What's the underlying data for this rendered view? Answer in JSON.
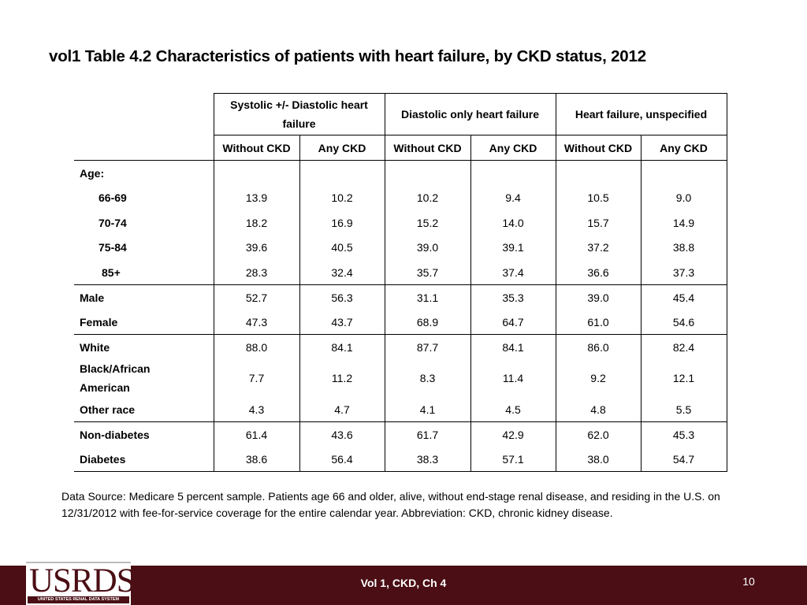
{
  "title": "vol1 Table 4.2 Characteristics of patients with heart failure, by CKD status, 2012",
  "table": {
    "groups": [
      "Systolic +/- Diastolic heart failure",
      "Diastolic only heart failure",
      "Heart failure, unspecified"
    ],
    "subcolumns": [
      "Without CKD",
      "Any CKD",
      "Without CKD",
      "Any CKD",
      "Without CKD",
      "Any CKD"
    ],
    "age_label": "Age:",
    "rows": [
      {
        "label": "66-69",
        "values": [
          "13.9",
          "10.2",
          "10.2",
          "9.4",
          "10.5",
          "9.0"
        ]
      },
      {
        "label": "70-74",
        "values": [
          "18.2",
          "16.9",
          "15.2",
          "14.0",
          "15.7",
          "14.9"
        ]
      },
      {
        "label": "75-84",
        "values": [
          "39.6",
          "40.5",
          "39.0",
          "39.1",
          "37.2",
          "38.8"
        ]
      },
      {
        "label": "85+",
        "values": [
          "28.3",
          "32.4",
          "35.7",
          "37.4",
          "36.6",
          "37.3"
        ]
      },
      {
        "label": "Male",
        "values": [
          "52.7",
          "56.3",
          "31.1",
          "35.3",
          "39.0",
          "45.4"
        ]
      },
      {
        "label": "Female",
        "values": [
          "47.3",
          "43.7",
          "68.9",
          "64.7",
          "61.0",
          "54.6"
        ]
      },
      {
        "label": "White",
        "values": [
          "88.0",
          "84.1",
          "87.7",
          "84.1",
          "86.0",
          "82.4"
        ]
      },
      {
        "label": "Black/African American",
        "values": [
          "7.7",
          "11.2",
          "8.3",
          "11.4",
          "9.2",
          "12.1"
        ]
      },
      {
        "label": "Other race",
        "values": [
          "4.3",
          "4.7",
          "4.1",
          "4.5",
          "4.8",
          "5.5"
        ]
      },
      {
        "label": "Non-diabetes",
        "values": [
          "61.4",
          "43.6",
          "61.7",
          "42.9",
          "62.0",
          "45.3"
        ]
      },
      {
        "label": "Diabetes",
        "values": [
          "38.6",
          "56.4",
          "38.3",
          "57.1",
          "38.0",
          "54.7"
        ]
      }
    ]
  },
  "note": "Data Source: Medicare 5 percent sample. Patients age 66 and older, alive, without end-stage renal disease, and residing in the U.S. on 12/31/2012 with fee-for-service coverage for the entire calendar year. Abbreviation: CKD, chronic kidney disease.",
  "footer": {
    "logo_text": "USRDS",
    "logo_subtext": "UNITED STATES RENAL DATA SYSTEM",
    "center": "Vol 1, CKD, Ch 4",
    "page": "10"
  },
  "colors": {
    "footer_bg": "#4a0e14",
    "text": "#000000"
  }
}
